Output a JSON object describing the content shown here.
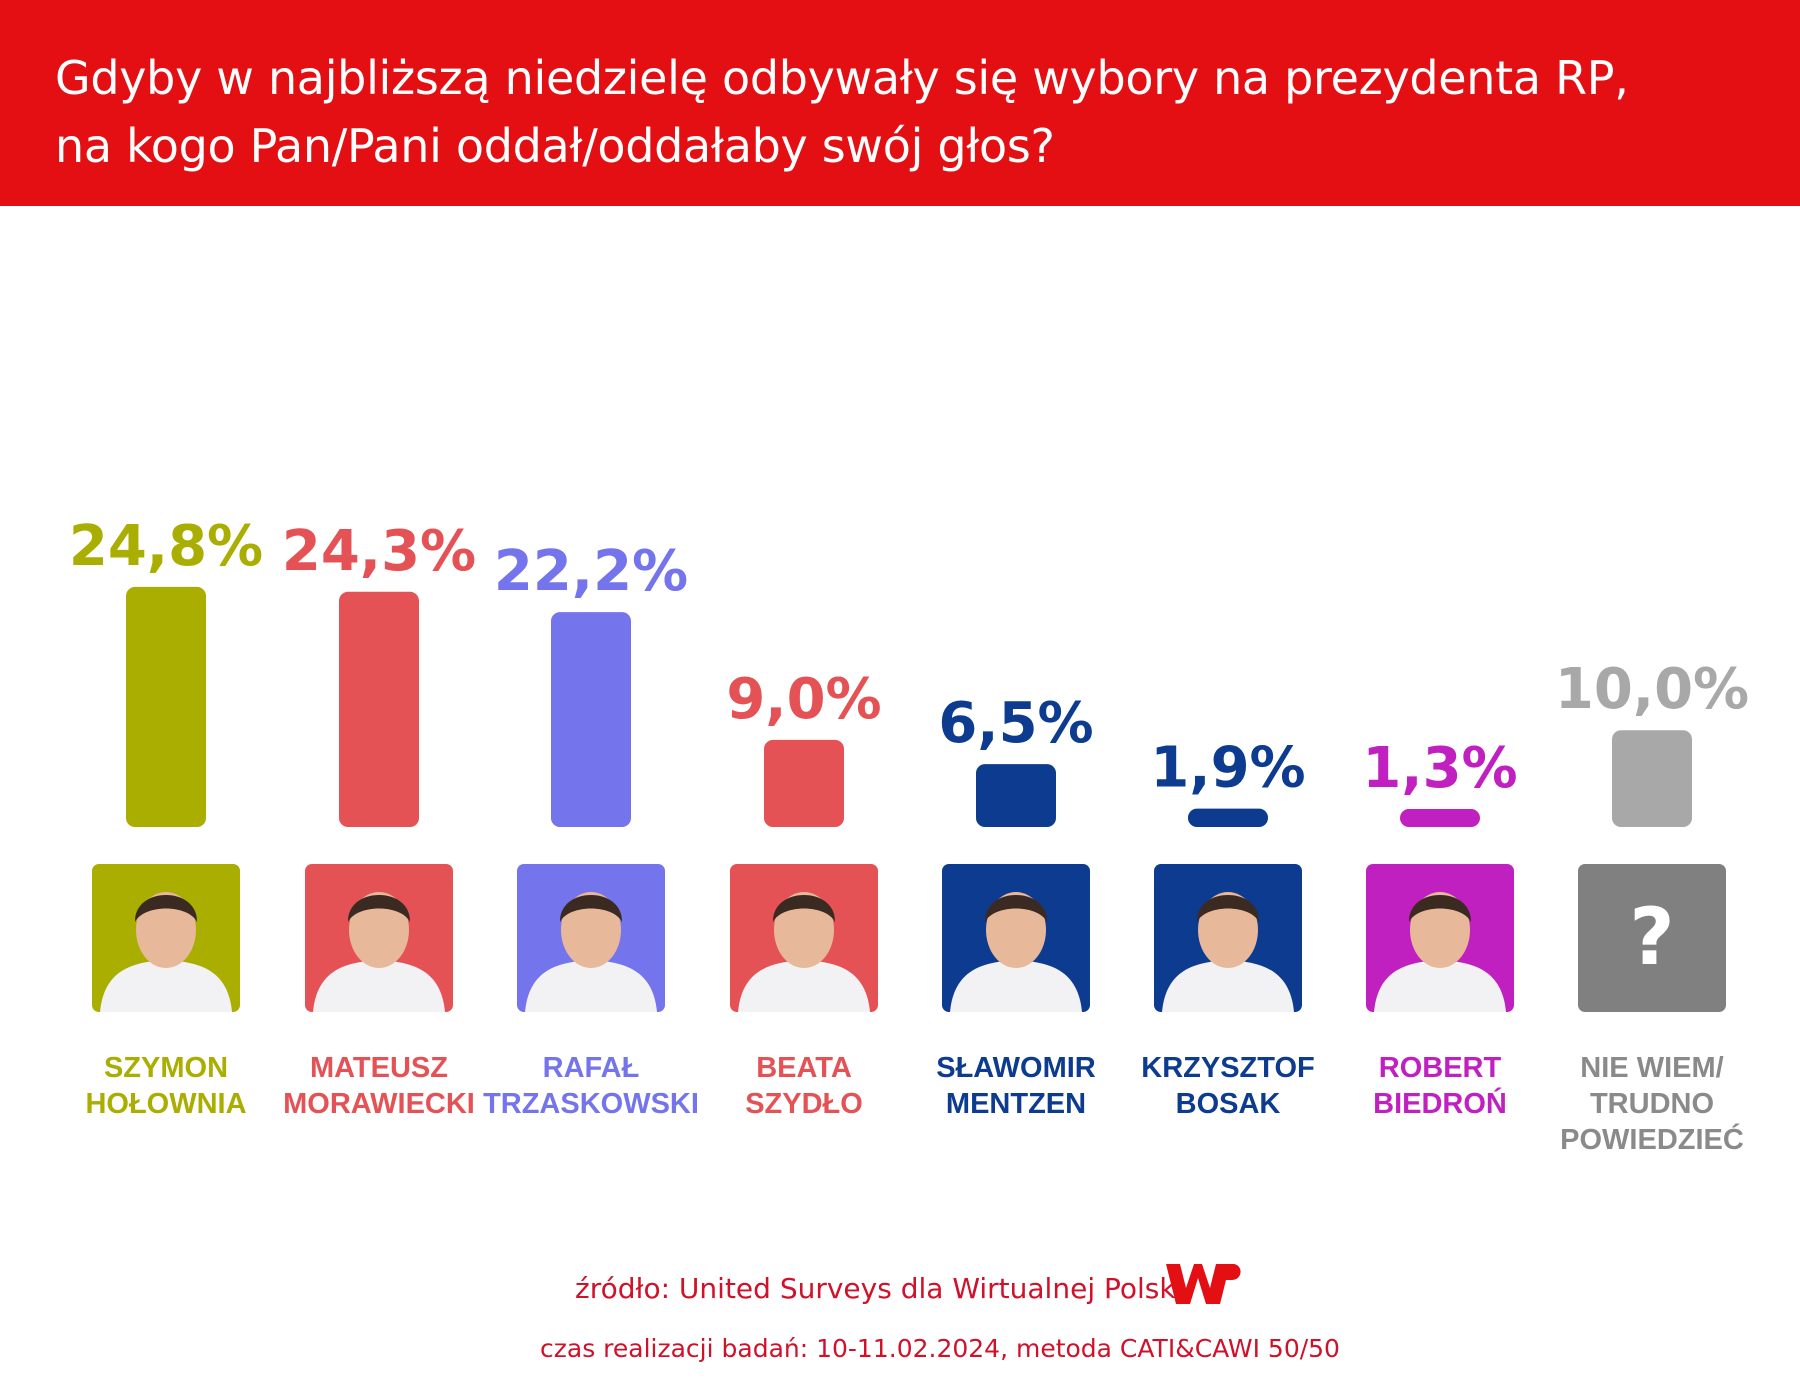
{
  "title": {
    "line1": "Gdyby w najbliższą niedzielę odbywały się wybory na prezydenta RP,",
    "line2": "na kogo Pan/Pani oddał/oddałaby swój głos?"
  },
  "chart_data": {
    "type": "bar",
    "title": "Gdyby w najbliższą niedzielę odbywały się wybory na prezydenta RP, na kogo Pan/Pani oddał/oddałaby swój głos?",
    "ylabel": "",
    "xlabel": "",
    "ylim": [
      0,
      25
    ],
    "unit": "%",
    "categories": [
      {
        "name": "SZYMON HOŁOWNIA",
        "label_lines": [
          "SZYMON",
          "HOŁOWNIA"
        ],
        "value": 24.8,
        "value_label": "24,8%",
        "color": "#a9ae00"
      },
      {
        "name": "MATEUSZ MORAWIECKI",
        "label_lines": [
          "MATEUSZ",
          "MORAWIECKI"
        ],
        "value": 24.3,
        "value_label": "24,3%",
        "color": "#e45256"
      },
      {
        "name": "RAFAŁ TRZASKOWSKI",
        "label_lines": [
          "RAFAŁ",
          "TRZASKOWSKI"
        ],
        "value": 22.2,
        "value_label": "22,2%",
        "color": "#7474ec"
      },
      {
        "name": "BEATA SZYDŁO",
        "label_lines": [
          "BEATA",
          "SZYDŁO"
        ],
        "value": 9.0,
        "value_label": "9,0%",
        "color": "#e45256"
      },
      {
        "name": "SŁAWOMIR MENTZEN",
        "label_lines": [
          "SŁAWOMIR",
          "MENTZEN"
        ],
        "value": 6.5,
        "value_label": "6,5%",
        "color": "#0c3b8f"
      },
      {
        "name": "KRZYSZTOF BOSAK",
        "label_lines": [
          "KRZYSZTOF",
          "BOSAK"
        ],
        "value": 1.9,
        "value_label": "1,9%",
        "color": "#0c3b8f"
      },
      {
        "name": "ROBERT BIEDROŃ",
        "label_lines": [
          "ROBERT",
          "BIEDROŃ"
        ],
        "value": 1.3,
        "value_label": "1,3%",
        "color": "#c020c0"
      },
      {
        "name": "NIE WIEM/ TRUDNO POWIEDZIEĆ",
        "label_lines": [
          "NIE WIEM/",
          "TRUDNO",
          "POWIEDZIEĆ"
        ],
        "value": 10.0,
        "value_label": "10,0%",
        "color": "#a8a8a8",
        "unknown": true
      }
    ],
    "unknown_symbol": "?"
  },
  "footer": {
    "source": "źródło: United Surveys dla Wirtualnej Polski",
    "date": "czas realizacji badań: 10-11.02.2024, metoda CATI&CAWI 50/50",
    "logo_icon": "wp-logo-icon",
    "brand_color": "#e30f13"
  }
}
